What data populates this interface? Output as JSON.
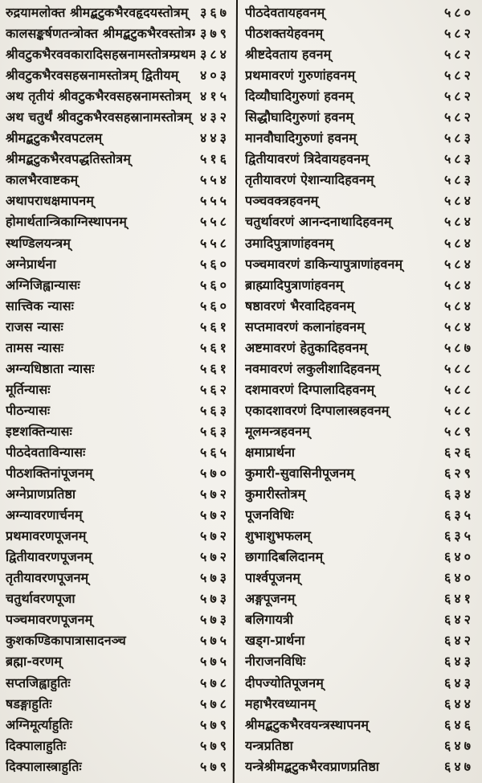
{
  "colors": {
    "paper": "#f1efe9",
    "ink": "#1d1a15",
    "divider": "#17140f"
  },
  "toc": {
    "left": [
      {
        "title": "रुद्रयामलोक्त श्रीमद्बटुकभैरवहृदयस्तोत्रम्",
        "page": "३६७"
      },
      {
        "title": "कालसङ्कर्षणतन्त्रोक्त श्रीमद्बटुकभैरवस्तोत्रम्",
        "page": "३७९"
      },
      {
        "title": "श्रीवटुकभैरववकारादिसहस्रनामस्तोत्रम्प्रथमम्",
        "page": "३८४"
      },
      {
        "title": "श्रीवटुकभैरवसहस्रनामस्तोत्रम् द्वितीयम्",
        "page": "४०३"
      },
      {
        "title": "अथ तृतीयं श्रीवटुकभैरवसहस्रनामस्तोत्रम्",
        "page": "४१५"
      },
      {
        "title": "अथ चतुर्थं श्रीवटुकभैरवसहस्रानामस्तोत्रम्",
        "page": "४३२"
      },
      {
        "title": "श्रीमद्बटुकभैरवपटलम्",
        "page": "४४३"
      },
      {
        "title": "श्रीमद्बटुकभैरवपद्धतिस्तोत्रम्",
        "page": "५१६"
      },
      {
        "title": "कालभैरवाष्टकम्",
        "page": "५५४"
      },
      {
        "title": "अथापराधक्षमापनम्",
        "page": "५५५"
      },
      {
        "title": "होमार्थतान्त्रिकाग्निस्थापनम्",
        "page": "५५८"
      },
      {
        "title": "स्थण्डिलयन्त्रम्",
        "page": "५५८"
      },
      {
        "title": "अग्नेप्रार्थना",
        "page": "५६०"
      },
      {
        "title": "अग्निजिह्वान्यासः",
        "page": "५६०"
      },
      {
        "title": "सात्त्विक न्यासः",
        "page": "५६०"
      },
      {
        "title": "राजस न्यासः",
        "page": "५६१"
      },
      {
        "title": "तामस न्यासः",
        "page": "५६१"
      },
      {
        "title": "अग्न्यधिष्ठाता न्यासः",
        "page": "५६१"
      },
      {
        "title": "मूर्तिन्यासः",
        "page": "५६२"
      },
      {
        "title": "पीठन्यासः",
        "page": "५६३"
      },
      {
        "title": "इष्टशक्तिन्यासः",
        "page": "५६३"
      },
      {
        "title": "पीठदेवताविन्यासः",
        "page": "५६५"
      },
      {
        "title": "पीठशक्तिनांपूजनम्",
        "page": "५७०"
      },
      {
        "title": "अग्नेप्राणप्रतिष्ठा",
        "page": "५७२"
      },
      {
        "title": "अग्न्यावरणार्चनम्",
        "page": "५७२"
      },
      {
        "title": "प्रथमावरणपूजनम्",
        "page": "५७२"
      },
      {
        "title": "द्वितीयावरणपूजनम्",
        "page": "५७२"
      },
      {
        "title": "तृतीयावरणपूजनम्",
        "page": "५७३"
      },
      {
        "title": "चतुर्थावरणपूजा",
        "page": "५७३"
      },
      {
        "title": "पञ्चमावरणपूजनम्",
        "page": "५७३"
      },
      {
        "title": "कुशकण्डिकापात्रासादनञ्च",
        "page": "५७५"
      },
      {
        "title": "ब्रह्मा-वरणम्",
        "page": "५७५"
      },
      {
        "title": "सप्तजिह्वाहुतिः",
        "page": "५७८"
      },
      {
        "title": "षडङ्गाहुतिः",
        "page": "५७८"
      },
      {
        "title": "अग्निमूर्त्याहुतिः",
        "page": "५७९"
      },
      {
        "title": "दिक्पालाहुतिः",
        "page": "५७९"
      },
      {
        "title": "दिक्पालास्त्राहुतिः",
        "page": "५७९"
      }
    ],
    "right": [
      {
        "title": "पीठदेवतायहवनम्",
        "page": "५८०"
      },
      {
        "title": "पीठशक्तयेहवनम्",
        "page": "५८२"
      },
      {
        "title": "श्रीष्टदेवताय हवनम्",
        "page": "५८२"
      },
      {
        "title": "प्रथमावरणं गुरुणांहवनम्",
        "page": "५८२"
      },
      {
        "title": "दिव्यौघादिगुरुणां हवनम्",
        "page": "५८२"
      },
      {
        "title": "सिद्धौघादिगुरुणां हवनम्",
        "page": "५८२"
      },
      {
        "title": "मानवौघादिगुरुणां हवनम्",
        "page": "५८३"
      },
      {
        "title": "द्वितीयावरणं त्रिदेवायहवनम्",
        "page": "५८३"
      },
      {
        "title": "तृतीयावरणं ऐशान्यादिहवनम्",
        "page": "५८३"
      },
      {
        "title": "पञ्चवक्त्रहवनम्",
        "page": "५८४"
      },
      {
        "title": "चतुर्थावरणं आनन्दनाथादिहवनम्",
        "page": "५८४"
      },
      {
        "title": "उमादिपुत्राणांहवनम्",
        "page": "५८४"
      },
      {
        "title": "पञ्चमावरणं डाकिन्यापुत्राणांहवनम्",
        "page": "५८४"
      },
      {
        "title": "ब्राह्म्यादिपुत्राणांहवनम्",
        "page": "५८४"
      },
      {
        "title": "षष्ठावरणं भैरवादिहवनम्",
        "page": "५८४"
      },
      {
        "title": "सप्तमावरणं कलानांहवनम्",
        "page": "५८४"
      },
      {
        "title": "अष्टमावरणं हेतुकादिहवनम्",
        "page": "५८७"
      },
      {
        "title": "नवमावरणं लकुलीशादिहवनम्",
        "page": "५८८"
      },
      {
        "title": "दशमावरणं दिग्पालादिहवनम्",
        "page": "५८८"
      },
      {
        "title": "एकादशावरणं दिग्पालास्त्रहवनम्",
        "page": "५८८"
      },
      {
        "title": "मूलमन्त्रहवनम्",
        "page": "५८९"
      },
      {
        "title": "क्षमाप्रार्थना",
        "page": "६२६"
      },
      {
        "title": "कुमारी-सुवासिनीपूजनम्",
        "page": "६२९"
      },
      {
        "title": "कुमारीस्तोत्रम्",
        "page": "६३४"
      },
      {
        "title": "पूजनविधिः",
        "page": "६३५"
      },
      {
        "title": "शुभाशुभफलम्",
        "page": "६३५"
      },
      {
        "title": "छागादिबलिदानम्",
        "page": "६४०"
      },
      {
        "title": "पार्श्वपूजनम्",
        "page": "६४०"
      },
      {
        "title": "अङ्गपूजनम्",
        "page": "६४१"
      },
      {
        "title": "बलिगायत्री",
        "page": "६४२"
      },
      {
        "title": "खड्ग-प्रार्थना",
        "page": "६४२"
      },
      {
        "title": "नीराजनविधिः",
        "page": "६४३"
      },
      {
        "title": "दीपज्योतिपूजनम्",
        "page": "६४३"
      },
      {
        "title": "महाभैरवध्यानम्",
        "page": "६४४"
      },
      {
        "title": "श्रीमद्बटुकभैरवयन्त्रस्थापनम्",
        "page": "६४६"
      },
      {
        "title": "यन्त्रप्रतिष्ठा",
        "page": "६४७"
      },
      {
        "title": "यन्त्रेश्रीमद्बटुकभैरवप्राणप्रतिष्ठा",
        "page": "६४७"
      }
    ]
  }
}
